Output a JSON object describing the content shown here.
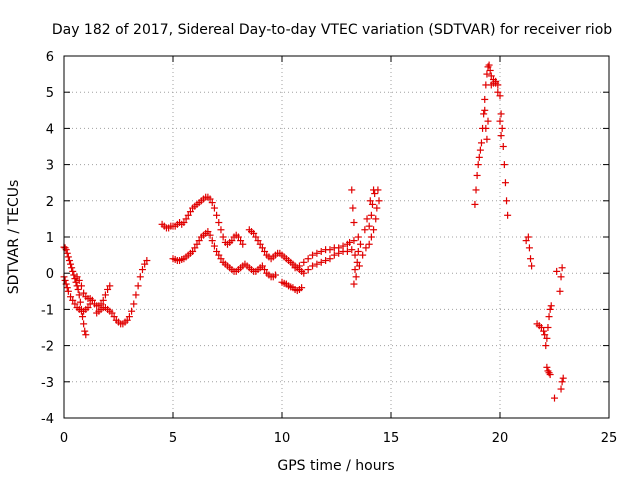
{
  "chart_data": {
    "type": "scatter",
    "title": "Day 182 of 2017, Sidereal Day-to-day VTEC variation (SDTVAR) for receiver riob",
    "xlabel": "GPS time / hours",
    "ylabel": "SDTVAR / TECUs",
    "xlim": [
      0,
      25
    ],
    "ylim": [
      -4,
      6
    ],
    "xticks": [
      0,
      5,
      10,
      15,
      20,
      25
    ],
    "xtick_labels": [
      "0",
      "5",
      "10",
      "15",
      "20",
      "25"
    ],
    "yticks": [
      -4,
      -3,
      -2,
      -1,
      0,
      1,
      2,
      3,
      4,
      5,
      6
    ],
    "ytick_labels": [
      "-4",
      "-3",
      "-2",
      "-1",
      "0",
      "1",
      "2",
      "3",
      "4",
      "5",
      "6"
    ],
    "grid": true,
    "marker": "+",
    "color": "#e00000",
    "series": [
      {
        "name": "SDTVAR",
        "points": [
          [
            0.0,
            0.72
          ],
          [
            0.05,
            0.7
          ],
          [
            0.1,
            0.65
          ],
          [
            0.15,
            0.55
          ],
          [
            0.2,
            0.45
          ],
          [
            0.25,
            0.35
          ],
          [
            0.3,
            0.25
          ],
          [
            0.35,
            0.15
          ],
          [
            0.4,
            0.05
          ],
          [
            0.45,
            -0.05
          ],
          [
            0.5,
            -0.15
          ],
          [
            0.55,
            -0.25
          ],
          [
            0.6,
            -0.35
          ],
          [
            0.65,
            -0.45
          ],
          [
            0.7,
            -0.6
          ],
          [
            0.75,
            -0.8
          ],
          [
            0.8,
            -1.0
          ],
          [
            0.85,
            -1.2
          ],
          [
            0.9,
            -1.4
          ],
          [
            0.95,
            -1.6
          ],
          [
            1.0,
            -1.7
          ],
          [
            0.0,
            -0.1
          ],
          [
            0.05,
            -0.2
          ],
          [
            0.1,
            -0.3
          ],
          [
            0.15,
            -0.4
          ],
          [
            0.2,
            -0.5
          ],
          [
            0.3,
            -0.65
          ],
          [
            0.4,
            -0.75
          ],
          [
            0.5,
            -0.85
          ],
          [
            0.6,
            -0.95
          ],
          [
            0.7,
            -1.0
          ],
          [
            0.8,
            -1.05
          ],
          [
            0.9,
            -1.05
          ],
          [
            1.0,
            -1.0
          ],
          [
            1.1,
            -0.95
          ],
          [
            1.2,
            -0.85
          ],
          [
            1.3,
            -0.75
          ],
          [
            0.6,
            -0.1
          ],
          [
            0.7,
            -0.2
          ],
          [
            0.8,
            -0.35
          ],
          [
            0.9,
            -0.55
          ],
          [
            1.0,
            -0.65
          ],
          [
            1.1,
            -0.7
          ],
          [
            1.2,
            -0.7
          ],
          [
            1.3,
            -0.75
          ],
          [
            1.4,
            -0.85
          ],
          [
            1.5,
            -0.9
          ],
          [
            1.6,
            -0.9
          ],
          [
            1.7,
            -0.85
          ],
          [
            1.8,
            -0.75
          ],
          [
            1.9,
            -0.6
          ],
          [
            2.0,
            -0.45
          ],
          [
            2.1,
            -0.35
          ],
          [
            1.5,
            -1.1
          ],
          [
            1.6,
            -1.05
          ],
          [
            1.7,
            -1.0
          ],
          [
            1.8,
            -0.95
          ],
          [
            1.9,
            -0.95
          ],
          [
            2.0,
            -1.0
          ],
          [
            2.1,
            -1.05
          ],
          [
            2.2,
            -1.1
          ],
          [
            2.3,
            -1.2
          ],
          [
            2.4,
            -1.3
          ],
          [
            2.5,
            -1.35
          ],
          [
            2.6,
            -1.4
          ],
          [
            2.7,
            -1.4
          ],
          [
            2.8,
            -1.35
          ],
          [
            2.9,
            -1.3
          ],
          [
            3.0,
            -1.2
          ],
          [
            3.1,
            -1.05
          ],
          [
            3.2,
            -0.85
          ],
          [
            3.3,
            -0.6
          ],
          [
            3.4,
            -0.35
          ],
          [
            3.5,
            -0.1
          ],
          [
            3.6,
            0.1
          ],
          [
            3.7,
            0.25
          ],
          [
            3.8,
            0.35
          ],
          [
            4.5,
            1.35
          ],
          [
            4.6,
            1.3
          ],
          [
            4.7,
            1.25
          ],
          [
            4.8,
            1.25
          ],
          [
            4.9,
            1.3
          ],
          [
            5.0,
            1.3
          ],
          [
            5.1,
            1.3
          ],
          [
            5.2,
            1.35
          ],
          [
            5.3,
            1.4
          ],
          [
            5.4,
            1.35
          ],
          [
            5.5,
            1.4
          ],
          [
            5.6,
            1.5
          ],
          [
            5.7,
            1.6
          ],
          [
            5.8,
            1.7
          ],
          [
            5.9,
            1.8
          ],
          [
            6.0,
            1.85
          ],
          [
            6.1,
            1.9
          ],
          [
            6.2,
            1.95
          ],
          [
            6.3,
            2.0
          ],
          [
            6.4,
            2.05
          ],
          [
            6.5,
            2.1
          ],
          [
            6.6,
            2.1
          ],
          [
            6.7,
            2.05
          ],
          [
            6.8,
            1.95
          ],
          [
            6.9,
            1.8
          ],
          [
            7.0,
            1.6
          ],
          [
            7.1,
            1.4
          ],
          [
            7.2,
            1.2
          ],
          [
            7.3,
            1.0
          ],
          [
            7.4,
            0.85
          ],
          [
            7.5,
            0.8
          ],
          [
            7.6,
            0.85
          ],
          [
            7.7,
            0.9
          ],
          [
            7.8,
            1.0
          ],
          [
            7.9,
            1.05
          ],
          [
            8.0,
            1.0
          ],
          [
            8.1,
            0.9
          ],
          [
            8.2,
            0.8
          ],
          [
            5.0,
            0.4
          ],
          [
            5.1,
            0.38
          ],
          [
            5.2,
            0.35
          ],
          [
            5.3,
            0.35
          ],
          [
            5.4,
            0.38
          ],
          [
            5.5,
            0.4
          ],
          [
            5.6,
            0.45
          ],
          [
            5.7,
            0.5
          ],
          [
            5.8,
            0.55
          ],
          [
            5.9,
            0.6
          ],
          [
            6.0,
            0.7
          ],
          [
            6.1,
            0.8
          ],
          [
            6.2,
            0.9
          ],
          [
            6.3,
            1.0
          ],
          [
            6.4,
            1.05
          ],
          [
            6.5,
            1.1
          ],
          [
            6.6,
            1.15
          ],
          [
            6.7,
            1.05
          ],
          [
            6.8,
            0.9
          ],
          [
            6.9,
            0.75
          ],
          [
            7.0,
            0.6
          ],
          [
            7.1,
            0.5
          ],
          [
            7.2,
            0.4
          ],
          [
            7.3,
            0.3
          ],
          [
            7.4,
            0.25
          ],
          [
            7.5,
            0.2
          ],
          [
            7.6,
            0.15
          ],
          [
            7.7,
            0.1
          ],
          [
            7.8,
            0.05
          ],
          [
            7.9,
            0.05
          ],
          [
            8.0,
            0.1
          ],
          [
            8.1,
            0.15
          ],
          [
            8.2,
            0.2
          ],
          [
            8.3,
            0.25
          ],
          [
            8.4,
            0.2
          ],
          [
            8.5,
            0.15
          ],
          [
            8.6,
            0.1
          ],
          [
            8.7,
            0.05
          ],
          [
            8.8,
            0.05
          ],
          [
            8.9,
            0.1
          ],
          [
            9.0,
            0.15
          ],
          [
            9.1,
            0.2
          ],
          [
            9.2,
            0.1
          ],
          [
            9.3,
            0.0
          ],
          [
            9.4,
            -0.05
          ],
          [
            9.5,
            -0.1
          ],
          [
            9.6,
            -0.1
          ],
          [
            9.7,
            -0.05
          ],
          [
            8.5,
            1.2
          ],
          [
            8.6,
            1.15
          ],
          [
            8.7,
            1.1
          ],
          [
            8.8,
            1.0
          ],
          [
            8.9,
            0.9
          ],
          [
            9.0,
            0.8
          ],
          [
            9.1,
            0.7
          ],
          [
            9.2,
            0.6
          ],
          [
            9.3,
            0.5
          ],
          [
            9.4,
            0.45
          ],
          [
            9.5,
            0.4
          ],
          [
            9.6,
            0.45
          ],
          [
            9.7,
            0.5
          ],
          [
            9.8,
            0.55
          ],
          [
            9.9,
            0.55
          ],
          [
            10.0,
            0.5
          ],
          [
            10.1,
            0.45
          ],
          [
            10.2,
            0.4
          ],
          [
            10.3,
            0.35
          ],
          [
            10.4,
            0.3
          ],
          [
            10.5,
            0.25
          ],
          [
            10.6,
            0.2
          ],
          [
            10.7,
            0.15
          ],
          [
            10.8,
            0.1
          ],
          [
            10.9,
            0.05
          ],
          [
            10.0,
            -0.25
          ],
          [
            10.1,
            -0.28
          ],
          [
            10.2,
            -0.3
          ],
          [
            10.3,
            -0.35
          ],
          [
            10.4,
            -0.38
          ],
          [
            10.5,
            -0.4
          ],
          [
            10.6,
            -0.45
          ],
          [
            10.7,
            -0.48
          ],
          [
            10.8,
            -0.45
          ],
          [
            10.9,
            -0.4
          ],
          [
            10.6,
            0.15
          ],
          [
            10.8,
            0.2
          ],
          [
            11.0,
            0.3
          ],
          [
            11.2,
            0.4
          ],
          [
            11.4,
            0.5
          ],
          [
            11.6,
            0.55
          ],
          [
            11.8,
            0.6
          ],
          [
            12.0,
            0.65
          ],
          [
            12.2,
            0.65
          ],
          [
            12.4,
            0.7
          ],
          [
            12.6,
            0.7
          ],
          [
            12.8,
            0.75
          ],
          [
            13.0,
            0.8
          ],
          [
            13.1,
            0.85
          ],
          [
            11.0,
            0.0
          ],
          [
            11.2,
            0.1
          ],
          [
            11.4,
            0.2
          ],
          [
            11.6,
            0.25
          ],
          [
            11.8,
            0.3
          ],
          [
            12.0,
            0.35
          ],
          [
            12.2,
            0.4
          ],
          [
            12.4,
            0.5
          ],
          [
            12.6,
            0.55
          ],
          [
            12.8,
            0.6
          ],
          [
            13.0,
            0.6
          ],
          [
            13.2,
            0.65
          ],
          [
            13.2,
            2.3
          ],
          [
            13.25,
            1.8
          ],
          [
            13.3,
            1.4
          ],
          [
            13.3,
            0.9
          ],
          [
            13.35,
            0.5
          ],
          [
            13.35,
            0.1
          ],
          [
            13.3,
            -0.3
          ],
          [
            13.4,
            -0.1
          ],
          [
            13.45,
            0.3
          ],
          [
            13.5,
            0.6
          ],
          [
            13.5,
            1.0
          ],
          [
            13.55,
            0.2
          ],
          [
            13.6,
            0.8
          ],
          [
            13.7,
            0.5
          ],
          [
            13.8,
            1.2
          ],
          [
            13.85,
            0.7
          ],
          [
            13.9,
            1.5
          ],
          [
            14.0,
            1.3
          ],
          [
            14.0,
            0.8
          ],
          [
            14.05,
            2.0
          ],
          [
            14.1,
            1.6
          ],
          [
            14.1,
            1.0
          ],
          [
            14.15,
            1.9
          ],
          [
            14.2,
            2.3
          ],
          [
            14.2,
            1.2
          ],
          [
            14.25,
            2.2
          ],
          [
            14.3,
            1.5
          ],
          [
            14.35,
            1.8
          ],
          [
            14.4,
            2.3
          ],
          [
            14.45,
            2.0
          ],
          [
            18.85,
            1.9
          ],
          [
            18.9,
            2.3
          ],
          [
            18.95,
            2.7
          ],
          [
            19.0,
            3.0
          ],
          [
            19.05,
            3.2
          ],
          [
            19.1,
            3.4
          ],
          [
            19.15,
            3.6
          ],
          [
            19.2,
            4.0
          ],
          [
            19.25,
            4.4
          ],
          [
            19.3,
            4.8
          ],
          [
            19.35,
            5.2
          ],
          [
            19.4,
            5.5
          ],
          [
            19.45,
            5.7
          ],
          [
            19.5,
            5.75
          ],
          [
            19.55,
            5.6
          ],
          [
            19.6,
            5.45
          ],
          [
            19.7,
            5.35
          ],
          [
            19.8,
            5.3
          ],
          [
            19.9,
            5.2
          ],
          [
            20.0,
            4.9
          ],
          [
            20.05,
            4.4
          ],
          [
            20.1,
            4.0
          ],
          [
            20.15,
            3.5
          ],
          [
            20.2,
            3.0
          ],
          [
            20.25,
            2.5
          ],
          [
            20.3,
            2.0
          ],
          [
            20.35,
            1.6
          ],
          [
            19.3,
            4.5
          ],
          [
            19.35,
            4.0
          ],
          [
            19.4,
            3.7
          ],
          [
            19.45,
            4.2
          ],
          [
            19.6,
            5.2
          ],
          [
            19.7,
            5.25
          ],
          [
            19.8,
            5.25
          ],
          [
            19.9,
            5.0
          ],
          [
            20.0,
            4.2
          ],
          [
            20.05,
            3.8
          ],
          [
            21.2,
            0.9
          ],
          [
            21.3,
            1.0
          ],
          [
            21.35,
            0.7
          ],
          [
            21.4,
            0.4
          ],
          [
            21.45,
            0.2
          ],
          [
            21.7,
            -1.4
          ],
          [
            21.8,
            -1.45
          ],
          [
            21.9,
            -1.5
          ],
          [
            22.0,
            -1.6
          ],
          [
            22.05,
            -1.7
          ],
          [
            22.1,
            -2.0
          ],
          [
            22.15,
            -1.8
          ],
          [
            22.2,
            -1.5
          ],
          [
            22.25,
            -1.2
          ],
          [
            22.3,
            -1.0
          ],
          [
            22.35,
            -0.9
          ],
          [
            22.15,
            -2.6
          ],
          [
            22.2,
            -2.7
          ],
          [
            22.25,
            -2.75
          ],
          [
            22.3,
            -2.8
          ],
          [
            22.5,
            -3.45
          ],
          [
            22.6,
            0.05
          ],
          [
            22.75,
            -0.5
          ],
          [
            22.8,
            -0.1
          ],
          [
            22.85,
            0.15
          ],
          [
            22.8,
            -3.2
          ],
          [
            22.85,
            -3.0
          ],
          [
            22.9,
            -2.9
          ]
        ]
      }
    ]
  }
}
